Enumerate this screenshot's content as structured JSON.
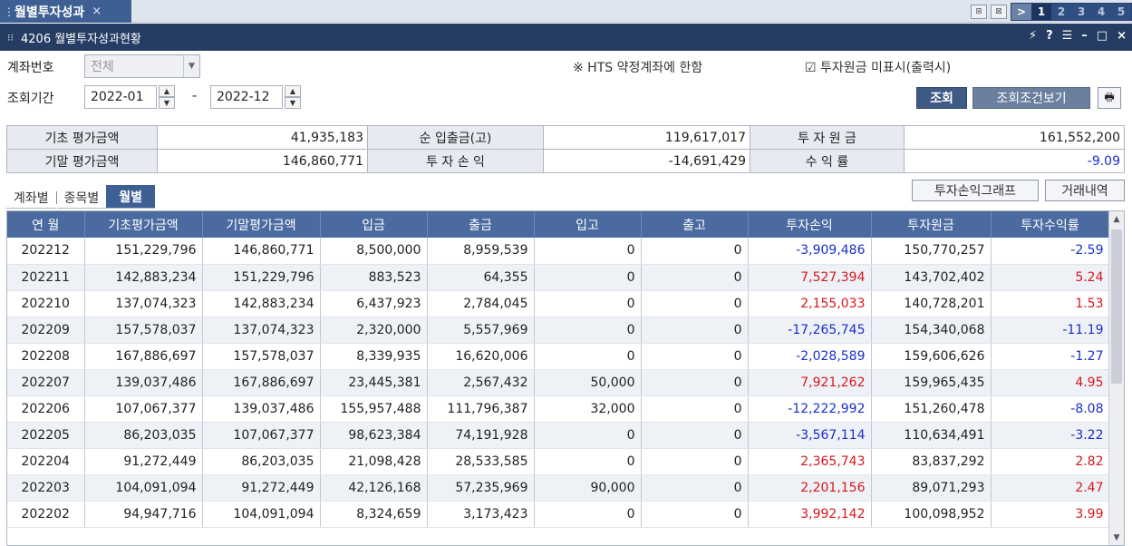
{
  "tab": {
    "label": "월별투자성과",
    "close": "×"
  },
  "pager": {
    "nav": ">",
    "pages": [
      "1",
      "2",
      "3",
      "4",
      "5"
    ],
    "current": "1"
  },
  "window": {
    "title": "4206 월별투자성과현황",
    "controls": [
      "⚡",
      "?",
      "☰",
      "–",
      "□",
      "×"
    ]
  },
  "condition": {
    "account_label": "계좌번호",
    "account_value": "전체",
    "period_label": "조회기간",
    "period_from": "2022-01",
    "period_sep": "-",
    "period_to": "2022-12",
    "hts_note": "※ HTS 약정계좌에 한함",
    "checkbox_label": "투자원금 미표시(출력시)",
    "checkbox_checked": true,
    "search_button": "조회",
    "condition_button": "조회조건보기"
  },
  "summary": {
    "row1": [
      {
        "label": "기초 평가금액",
        "value": "41,935,183"
      },
      {
        "label": "순 입출금(고)",
        "value": "119,617,017"
      },
      {
        "label": "투 자 원 금",
        "value": "161,552,200"
      }
    ],
    "row2": [
      {
        "label": "기말 평가금액",
        "value": "146,860,771"
      },
      {
        "label": "투 자 손 익",
        "value": "-14,691,429"
      },
      {
        "label": "수 익 률",
        "value": "-9.09"
      }
    ]
  },
  "subtabs": [
    "계좌별",
    "종목별",
    "월별"
  ],
  "active_subtab": "월별",
  "buttons": {
    "graph": "투자손익그래프",
    "history": "거래내역"
  },
  "table": {
    "headers": [
      "연 월",
      "기초평가금액",
      "기말평가금액",
      "입금",
      "출금",
      "입고",
      "출고",
      "투자손익",
      "투자원금",
      "투자수익률"
    ],
    "rows": [
      [
        "202212",
        "151,229,796",
        "146,860,771",
        "8,500,000",
        "8,959,539",
        "0",
        "0",
        "-3,909,486",
        "150,770,257",
        "-2.59"
      ],
      [
        "202211",
        "142,883,234",
        "151,229,796",
        "883,523",
        "64,355",
        "0",
        "0",
        "7,527,394",
        "143,702,402",
        "5.24"
      ],
      [
        "202210",
        "137,074,323",
        "142,883,234",
        "6,437,923",
        "2,784,045",
        "0",
        "0",
        "2,155,033",
        "140,728,201",
        "1.53"
      ],
      [
        "202209",
        "157,578,037",
        "137,074,323",
        "2,320,000",
        "5,557,969",
        "0",
        "0",
        "-17,265,745",
        "154,340,068",
        "-11.19"
      ],
      [
        "202208",
        "167,886,697",
        "157,578,037",
        "8,339,935",
        "16,620,006",
        "0",
        "0",
        "-2,028,589",
        "159,606,626",
        "-1.27"
      ],
      [
        "202207",
        "139,037,486",
        "167,886,697",
        "23,445,381",
        "2,567,432",
        "50,000",
        "0",
        "7,921,262",
        "159,965,435",
        "4.95"
      ],
      [
        "202206",
        "107,067,377",
        "139,037,486",
        "155,957,488",
        "111,796,387",
        "32,000",
        "0",
        "-12,222,992",
        "151,260,478",
        "-8.08"
      ],
      [
        "202205",
        "86,203,035",
        "107,067,377",
        "98,623,384",
        "74,191,928",
        "0",
        "0",
        "-3,567,114",
        "110,634,491",
        "-3.22"
      ],
      [
        "202204",
        "91,272,449",
        "86,203,035",
        "21,098,428",
        "28,533,585",
        "0",
        "0",
        "2,365,743",
        "83,837,292",
        "2.82"
      ],
      [
        "202203",
        "104,091,094",
        "91,272,449",
        "42,126,168",
        "57,235,969",
        "90,000",
        "0",
        "2,201,156",
        "89,071,293",
        "2.47"
      ],
      [
        "202202",
        "94,947,716",
        "104,091,094",
        "8,324,659",
        "3,173,423",
        "0",
        "0",
        "3,992,142",
        "100,098,952",
        "3.99"
      ]
    ]
  },
  "colors": {
    "accent": "#3d5f94",
    "header": "#4a6aa0",
    "negative": "#1b2fc9",
    "positive": "#d8171e"
  }
}
